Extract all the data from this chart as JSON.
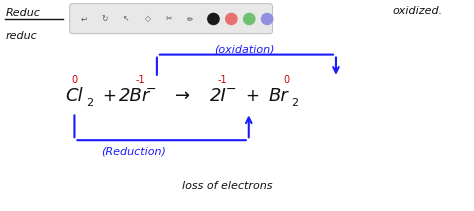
{
  "oxidation_label": "(oxidation)",
  "reduction_label": "(Reduction)",
  "bottom_label": "loss of electrons",
  "top_left_1": "Reduc",
  "top_left_2": "reduc",
  "top_right": "oxidized.",
  "blue_color": "#1a1aff",
  "red_color": "#cc0000",
  "black_color": "#111111",
  "white_color": "#ffffff",
  "toolbar_bg": "#e8e8e8",
  "toolbar_border": "#aaaaaa",
  "circle_colors": [
    "#1a1a1a",
    "#e87070",
    "#70c070",
    "#9090e0"
  ]
}
